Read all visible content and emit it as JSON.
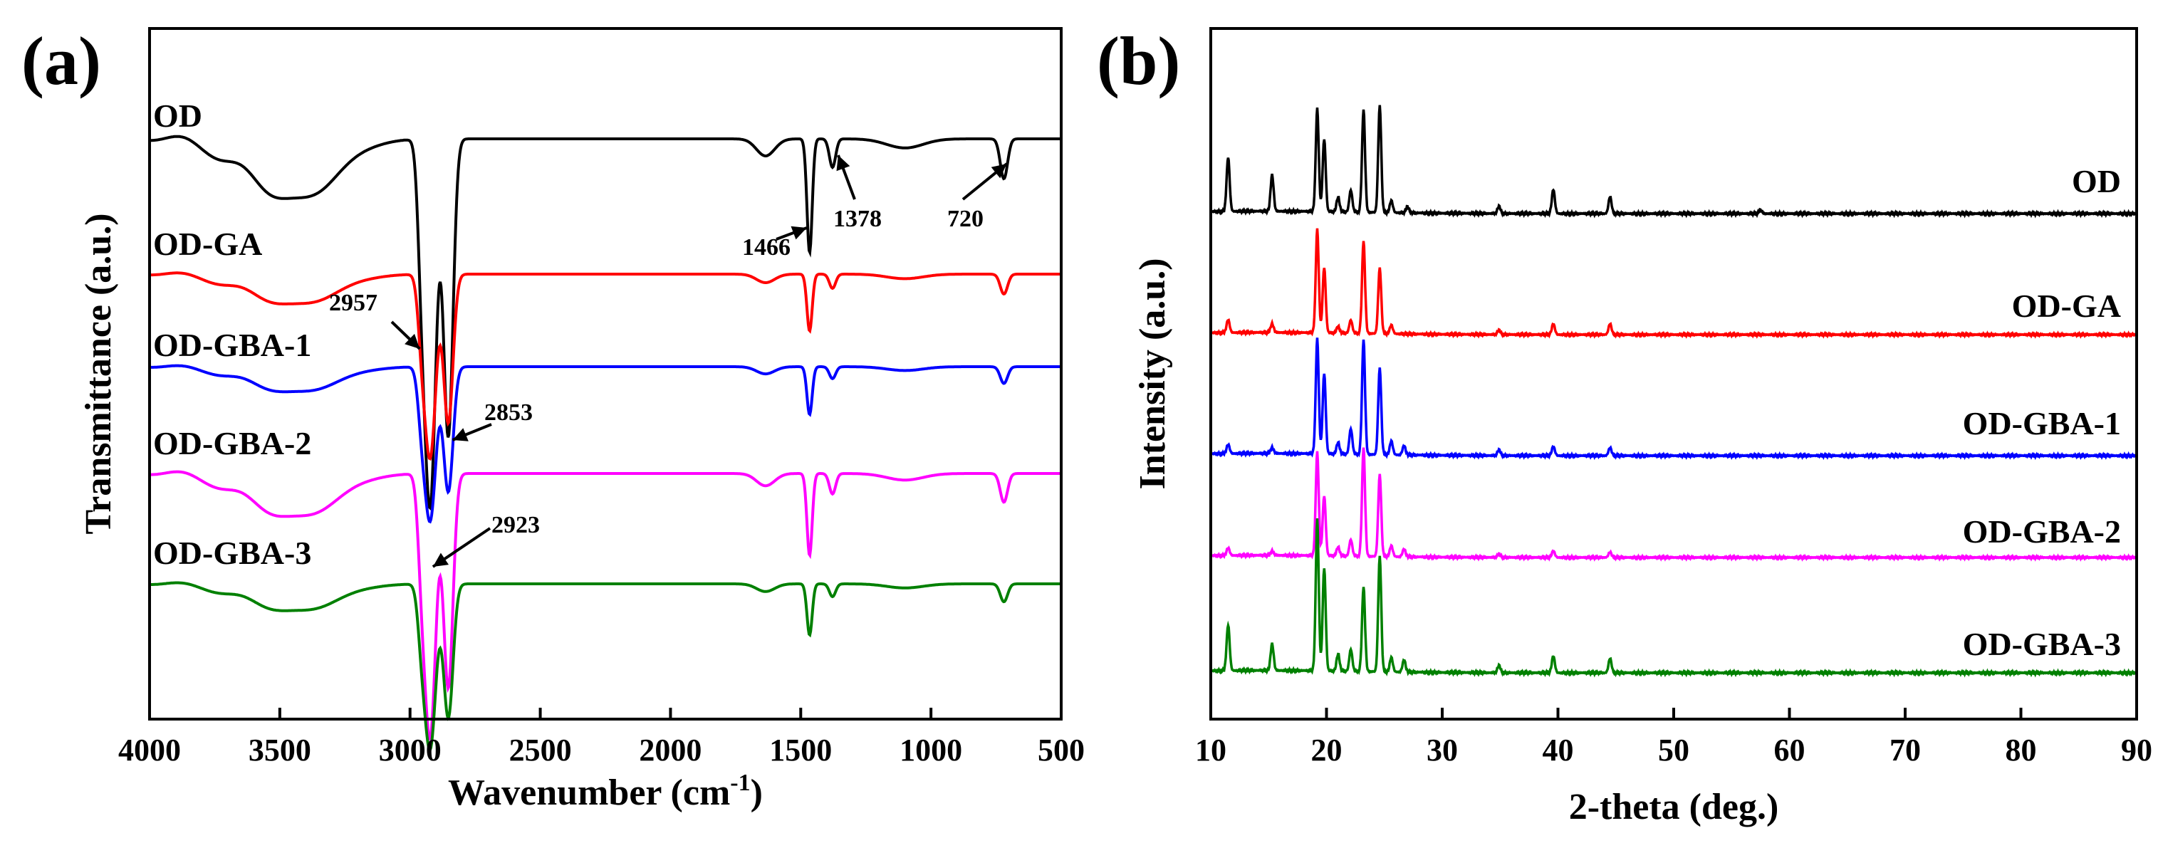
{
  "chart_data": [
    {
      "panel": "(a)",
      "type": "line",
      "xlabel_main": "Wavenumber (cm",
      "xlabel_sup": "-1",
      "xlabel_end": ")",
      "ylabel": "Transmittance (a.u.)",
      "xlim": [
        4000,
        500
      ],
      "x_ticks": [
        "4000",
        "3500",
        "3000",
        "2500",
        "2000",
        "1500",
        "1000",
        "500"
      ],
      "x_tick_values": [
        4000,
        3500,
        3000,
        2500,
        2000,
        1500,
        1000,
        500
      ],
      "series": [
        {
          "name": "OD",
          "color": "#000000",
          "offset": 0,
          "scale": 1.0
        },
        {
          "name": "OD-GA",
          "color": "#ff0000",
          "offset": -1.0,
          "scale": 0.5
        },
        {
          "name": "OD-GBA-1",
          "color": "#0000ff",
          "offset": -1.7,
          "scale": 0.42
        },
        {
          "name": "OD-GBA-2",
          "color": "#ff00ff",
          "offset": -2.45,
          "scale": 0.72
        },
        {
          "name": "OD-GBA-3",
          "color": "#008000",
          "offset": -3.25,
          "scale": 0.45
        }
      ],
      "annotations": [
        {
          "text": "1466",
          "x": 1466
        },
        {
          "text": "1378",
          "x": 1378
        },
        {
          "text": "720",
          "x": 720
        },
        {
          "text": "2957",
          "x": 2957
        },
        {
          "text": "2853",
          "x": 2853
        },
        {
          "text": "2923",
          "x": 2923
        }
      ]
    },
    {
      "panel": "(b)",
      "type": "line",
      "xlabel": "2-theta (deg.)",
      "ylabel": "Intensity (a.u.)",
      "xlim": [
        10,
        90
      ],
      "x_ticks": [
        "10",
        "20",
        "30",
        "40",
        "50",
        "60",
        "70",
        "80",
        "90"
      ],
      "x_tick_values": [
        10,
        20,
        30,
        40,
        50,
        60,
        70,
        80,
        90
      ],
      "series": [
        {
          "name": "OD",
          "color": "#000000",
          "baseline": 0,
          "scale": 1.0,
          "peaks": [
            [
              11.5,
              0.45
            ],
            [
              15.3,
              0.3
            ],
            [
              19.2,
              0.85
            ],
            [
              19.8,
              0.6
            ],
            [
              21.0,
              0.12
            ],
            [
              22.1,
              0.18
            ],
            [
              23.2,
              0.85
            ],
            [
              24.6,
              0.88
            ],
            [
              25.6,
              0.1
            ],
            [
              27.0,
              0.05
            ],
            [
              34.9,
              0.06
            ],
            [
              39.6,
              0.2
            ],
            [
              44.5,
              0.14
            ],
            [
              57.5,
              0.03
            ]
          ]
        },
        {
          "name": "OD-GA",
          "color": "#ff0000",
          "baseline": -1,
          "scale": 0.9,
          "peaks": [
            [
              11.5,
              0.12
            ],
            [
              15.3,
              0.08
            ],
            [
              19.2,
              0.95
            ],
            [
              19.8,
              0.6
            ],
            [
              21.0,
              0.06
            ],
            [
              22.1,
              0.12
            ],
            [
              23.2,
              0.85
            ],
            [
              24.6,
              0.6
            ],
            [
              25.6,
              0.08
            ],
            [
              34.9,
              0.04
            ],
            [
              39.6,
              0.1
            ],
            [
              44.5,
              0.1
            ]
          ]
        },
        {
          "name": "OD-GBA-1",
          "color": "#0000ff",
          "baseline": -2,
          "scale": 0.95,
          "peaks": [
            [
              11.5,
              0.08
            ],
            [
              15.3,
              0.05
            ],
            [
              19.2,
              1.0
            ],
            [
              19.8,
              0.7
            ],
            [
              21.0,
              0.1
            ],
            [
              22.1,
              0.22
            ],
            [
              23.2,
              1.0
            ],
            [
              24.6,
              0.75
            ],
            [
              25.6,
              0.12
            ],
            [
              26.7,
              0.08
            ],
            [
              34.9,
              0.05
            ],
            [
              39.6,
              0.08
            ],
            [
              44.5,
              0.07
            ]
          ]
        },
        {
          "name": "OD-GBA-2",
          "color": "#ff00ff",
          "baseline": -3,
          "scale": 0.9,
          "peaks": [
            [
              11.5,
              0.07
            ],
            [
              15.3,
              0.04
            ],
            [
              19.2,
              0.95
            ],
            [
              19.8,
              0.55
            ],
            [
              21.0,
              0.08
            ],
            [
              22.1,
              0.15
            ],
            [
              23.2,
              1.0
            ],
            [
              24.6,
              0.75
            ],
            [
              25.6,
              0.1
            ],
            [
              26.7,
              0.07
            ],
            [
              34.9,
              0.03
            ],
            [
              39.6,
              0.06
            ],
            [
              44.5,
              0.05
            ]
          ]
        },
        {
          "name": "OD-GBA-3",
          "color": "#008000",
          "baseline": -4,
          "scale": 1.0,
          "peaks": [
            [
              11.5,
              0.38
            ],
            [
              15.3,
              0.22
            ],
            [
              19.2,
              1.25
            ],
            [
              19.8,
              0.85
            ],
            [
              21.0,
              0.14
            ],
            [
              22.1,
              0.18
            ],
            [
              23.2,
              0.7
            ],
            [
              24.6,
              0.95
            ],
            [
              25.6,
              0.12
            ],
            [
              26.7,
              0.1
            ],
            [
              34.9,
              0.06
            ],
            [
              39.6,
              0.14
            ],
            [
              44.5,
              0.12
            ]
          ]
        }
      ]
    }
  ]
}
